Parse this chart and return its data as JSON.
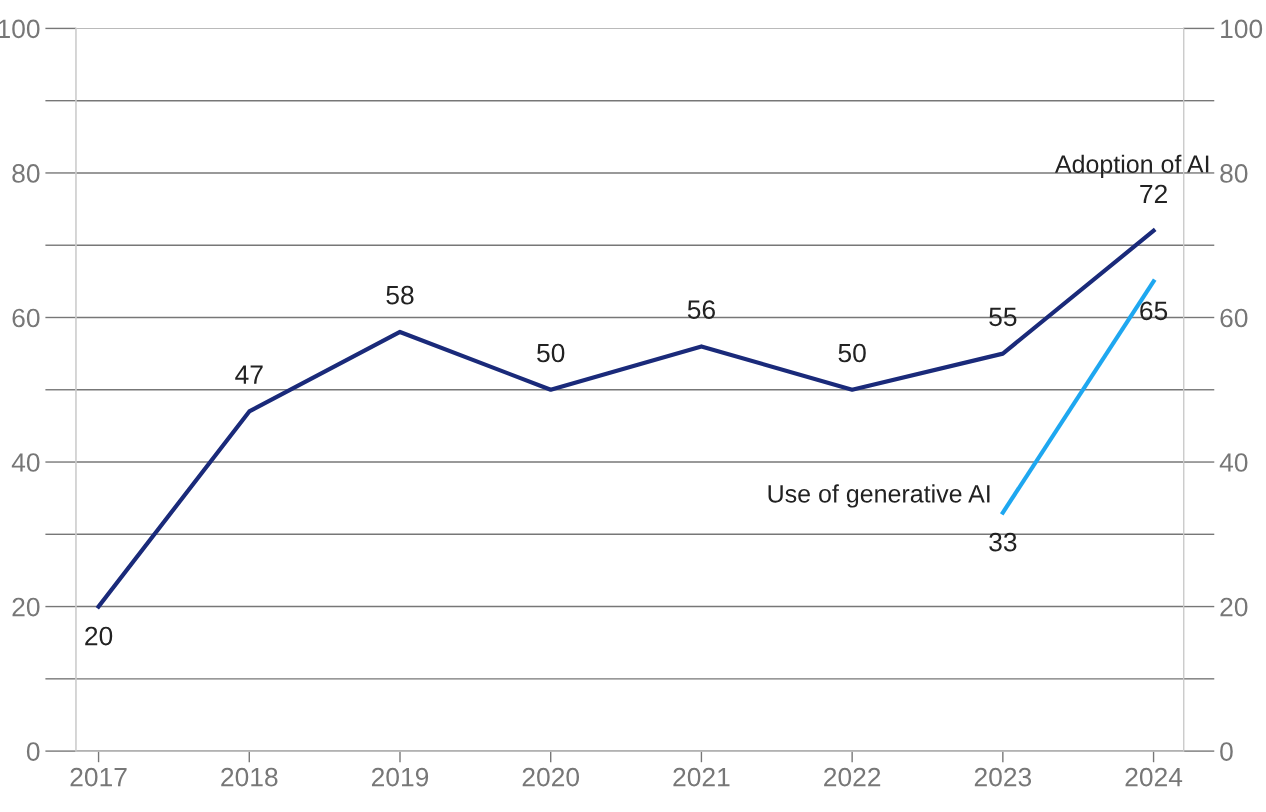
{
  "chart_data": {
    "type": "line",
    "x": [
      2017,
      2018,
      2019,
      2020,
      2021,
      2022,
      2023,
      2024
    ],
    "series": [
      {
        "name": "Adoption of AI",
        "color": "#1a2a7a",
        "values": [
          20,
          47,
          58,
          50,
          56,
          50,
          55,
          72
        ]
      },
      {
        "name": "Use of generative AI",
        "color": "#1ea7f0",
        "x": [
          2023,
          2024
        ],
        "values": [
          33,
          65
        ]
      }
    ],
    "xlim": [
      2016.85,
      2024.2
    ],
    "xticks": [
      2017,
      2018,
      2019,
      2020,
      2021,
      2022,
      2023,
      2024
    ],
    "ylim": [
      0,
      100
    ],
    "yticks": [
      0,
      {
        "value": 10,
        "label": null
      },
      20,
      {
        "value": 30,
        "label": null
      },
      40,
      {
        "value": 50,
        "label": null
      },
      60,
      {
        "value": 70,
        "label": null
      },
      80,
      {
        "value": 90,
        "label": null
      },
      100
    ],
    "y2lim": [
      0,
      100
    ],
    "y2ticks": [
      0,
      {
        "value": 10,
        "label": null
      },
      20,
      {
        "value": 30,
        "label": null
      },
      40,
      {
        "value": 50,
        "label": null
      },
      60,
      {
        "value": 70,
        "label": null
      },
      80,
      {
        "value": 90,
        "label": null
      },
      100
    ],
    "grid": "y",
    "data_labels": true,
    "marker": "none",
    "line_style": "solid",
    "legend": false
  }
}
